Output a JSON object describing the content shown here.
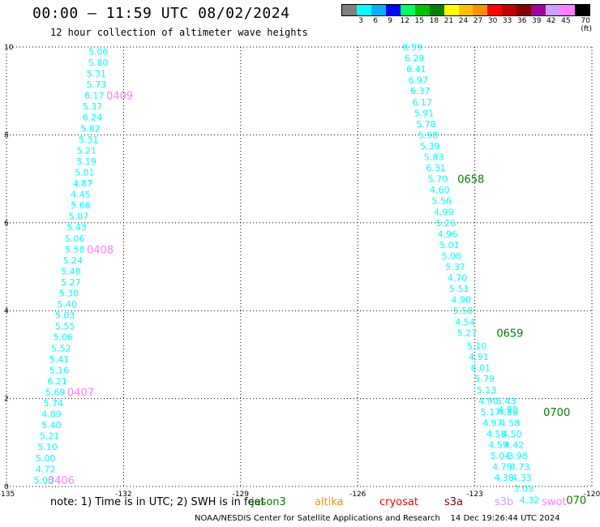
{
  "header": {
    "title": "00:00 – 11:59 UTC 08/02/2024",
    "subtitle": "12 hour collection of altimeter wave heights"
  },
  "colorbar": {
    "colors": [
      "#7f7f7f",
      "#00ffff",
      "#00b0ff",
      "#0000ff",
      "#00ff60",
      "#00c000",
      "#008000",
      "#ffff00",
      "#ffc000",
      "#ff9000",
      "#ff0000",
      "#c00000",
      "#800000",
      "#a000a0",
      "#d0a0ff",
      "#ff80ff",
      "#000000"
    ],
    "labels": [
      "3",
      "6",
      "9",
      "12",
      "15",
      "18",
      "21",
      "24",
      "27",
      "30",
      "33",
      "36",
      "39",
      "42",
      "45",
      "70 (ft)"
    ]
  },
  "chart_data": {
    "type": "scatter",
    "xlim": [
      -135,
      -120
    ],
    "ylim": [
      0,
      10
    ],
    "x_ticks": [
      "-135",
      "-132",
      "-129",
      "-126",
      "-123",
      "-120"
    ],
    "y_ticks": [
      "0",
      "2",
      "4",
      "6",
      "8",
      "10"
    ],
    "grid": true,
    "series": [
      {
        "color": "#00ffff",
        "points": [
          {
            "x": -132.65,
            "y": 9.9,
            "v": "5.06"
          },
          {
            "x": -132.65,
            "y": 9.65,
            "v": "5.80"
          },
          {
            "x": -132.7,
            "y": 9.4,
            "v": "5.31"
          },
          {
            "x": -132.7,
            "y": 9.15,
            "v": "5.73"
          },
          {
            "x": -132.75,
            "y": 8.9,
            "v": "6.17"
          },
          {
            "x": -132.8,
            "y": 8.65,
            "v": "5.37"
          },
          {
            "x": -132.8,
            "y": 8.4,
            "v": "6.24"
          },
          {
            "x": -132.85,
            "y": 8.15,
            "v": "5.82"
          },
          {
            "x": -132.9,
            "y": 7.9,
            "v": "5.31"
          },
          {
            "x": -132.95,
            "y": 7.65,
            "v": "5.21"
          },
          {
            "x": -132.95,
            "y": 7.4,
            "v": "5.19"
          },
          {
            "x": -133.0,
            "y": 7.15,
            "v": "5.01"
          },
          {
            "x": -133.05,
            "y": 6.9,
            "v": "4.87"
          },
          {
            "x": -133.1,
            "y": 6.65,
            "v": "4.45"
          },
          {
            "x": -133.1,
            "y": 6.4,
            "v": "5.66"
          },
          {
            "x": -133.15,
            "y": 6.15,
            "v": "5.07"
          },
          {
            "x": -133.2,
            "y": 5.9,
            "v": "5.43"
          },
          {
            "x": -133.25,
            "y": 5.65,
            "v": "5.06"
          },
          {
            "x": -133.25,
            "y": 5.4,
            "v": "5.58"
          },
          {
            "x": -133.3,
            "y": 5.15,
            "v": "5.24"
          },
          {
            "x": -133.35,
            "y": 4.9,
            "v": "5.48"
          },
          {
            "x": -133.35,
            "y": 4.65,
            "v": "5.27"
          },
          {
            "x": -133.4,
            "y": 4.4,
            "v": "5.30"
          },
          {
            "x": -133.45,
            "y": 4.15,
            "v": "5.40"
          },
          {
            "x": -133.5,
            "y": 3.9,
            "v": "5.03"
          },
          {
            "x": -133.5,
            "y": 3.65,
            "v": "5.55"
          },
          {
            "x": -133.55,
            "y": 3.4,
            "v": "5.06"
          },
          {
            "x": -133.6,
            "y": 3.15,
            "v": "5.52"
          },
          {
            "x": -133.65,
            "y": 2.9,
            "v": "5.41"
          },
          {
            "x": -133.65,
            "y": 2.65,
            "v": "5.16"
          },
          {
            "x": -133.7,
            "y": 2.4,
            "v": "6.21"
          },
          {
            "x": -133.75,
            "y": 2.15,
            "v": "5.69"
          },
          {
            "x": -133.8,
            "y": 1.9,
            "v": "5.74"
          },
          {
            "x": -133.85,
            "y": 1.65,
            "v": "4.89"
          },
          {
            "x": -133.85,
            "y": 1.4,
            "v": "5.40"
          },
          {
            "x": -133.9,
            "y": 1.15,
            "v": "5.21"
          },
          {
            "x": -133.95,
            "y": 0.9,
            "v": "5.10"
          },
          {
            "x": -134.0,
            "y": 0.65,
            "v": "5.00"
          },
          {
            "x": -134.0,
            "y": 0.4,
            "v": "4.72"
          },
          {
            "x": -134.05,
            "y": 0.15,
            "v": "5.03"
          }
        ]
      },
      {
        "color": "#00ffff",
        "points": [
          {
            "x": -124.6,
            "y": 10.0,
            "v": "6.99"
          },
          {
            "x": -124.55,
            "y": 9.75,
            "v": "6.29"
          },
          {
            "x": -124.5,
            "y": 9.5,
            "v": "6.41"
          },
          {
            "x": -124.45,
            "y": 9.25,
            "v": "6.97"
          },
          {
            "x": -124.4,
            "y": 9.0,
            "v": "6.37"
          },
          {
            "x": -124.35,
            "y": 8.75,
            "v": "6.17"
          },
          {
            "x": -124.3,
            "y": 8.5,
            "v": "5.91"
          },
          {
            "x": -124.25,
            "y": 8.25,
            "v": "5.78"
          },
          {
            "x": -124.2,
            "y": 8.0,
            "v": "5.98"
          },
          {
            "x": -124.15,
            "y": 7.75,
            "v": "5.39"
          },
          {
            "x": -124.05,
            "y": 7.5,
            "v": "5.83"
          },
          {
            "x": -124.0,
            "y": 7.25,
            "v": "6.31"
          },
          {
            "x": -123.95,
            "y": 7.0,
            "v": "5.70"
          },
          {
            "x": -123.9,
            "y": 6.75,
            "v": "4.60"
          },
          {
            "x": -123.85,
            "y": 6.5,
            "v": "5.56"
          },
          {
            "x": -123.8,
            "y": 6.25,
            "v": "4.99"
          },
          {
            "x": -123.75,
            "y": 6.0,
            "v": "5.26"
          },
          {
            "x": -123.7,
            "y": 5.75,
            "v": "4.96"
          },
          {
            "x": -123.65,
            "y": 5.5,
            "v": "5.01"
          },
          {
            "x": -123.6,
            "y": 5.25,
            "v": "5.08"
          },
          {
            "x": -123.5,
            "y": 5.0,
            "v": "5.37"
          },
          {
            "x": -123.45,
            "y": 4.75,
            "v": "4.70"
          },
          {
            "x": -123.4,
            "y": 4.5,
            "v": "5.51"
          },
          {
            "x": -123.35,
            "y": 4.25,
            "v": "4.90"
          },
          {
            "x": -123.3,
            "y": 4.0,
            "v": "5.58"
          },
          {
            "x": -123.25,
            "y": 3.75,
            "v": "4.54"
          },
          {
            "x": -123.2,
            "y": 3.5,
            "v": "5.27"
          },
          {
            "x": -122.95,
            "y": 3.2,
            "v": "5.10"
          },
          {
            "x": -122.9,
            "y": 2.95,
            "v": "4.91"
          },
          {
            "x": -122.85,
            "y": 2.7,
            "v": "6.01"
          },
          {
            "x": -122.75,
            "y": 2.45,
            "v": "5.79"
          },
          {
            "x": -122.7,
            "y": 2.2,
            "v": "5.13"
          },
          {
            "x": -122.65,
            "y": 1.95,
            "v": "4.90"
          },
          {
            "x": -122.6,
            "y": 1.7,
            "v": "5.17"
          },
          {
            "x": -122.55,
            "y": 1.45,
            "v": "4.97"
          },
          {
            "x": -122.45,
            "y": 1.2,
            "v": "4.58"
          },
          {
            "x": -122.4,
            "y": 0.95,
            "v": "4.59"
          },
          {
            "x": -122.35,
            "y": 0.7,
            "v": "5.04"
          },
          {
            "x": -122.3,
            "y": 0.45,
            "v": "4.79"
          },
          {
            "x": -122.25,
            "y": 0.2,
            "v": "4.38"
          }
        ]
      },
      {
        "color": "#00ffff",
        "points": [
          {
            "x": -122.2,
            "y": 1.95,
            "v": "5.43"
          },
          {
            "x": -122.15,
            "y": 1.75,
            "v": "4.98"
          },
          {
            "x": -122.15,
            "y": 1.7,
            "v": "4.86"
          },
          {
            "x": -122.1,
            "y": 1.45,
            "v": "4.58"
          },
          {
            "x": -122.05,
            "y": 1.2,
            "v": "4.50"
          },
          {
            "x": -122.0,
            "y": 0.95,
            "v": "4.42"
          },
          {
            "x": -121.9,
            "y": 0.7,
            "v": "3.98"
          },
          {
            "x": -121.85,
            "y": 0.45,
            "v": "3.73"
          },
          {
            "x": -121.8,
            "y": 0.2,
            "v": "4.33"
          },
          {
            "x": -121.75,
            "y": -0.05,
            "v": "3.03"
          },
          {
            "x": -121.6,
            "y": -0.3,
            "v": "4.32"
          }
        ]
      }
    ],
    "time_labels": [
      {
        "x": -132.1,
        "y": 8.9,
        "text": "0409",
        "color": "#ff80ff"
      },
      {
        "x": -132.6,
        "y": 5.4,
        "text": "0408",
        "color": "#ff80ff"
      },
      {
        "x": -133.1,
        "y": 2.15,
        "text": "0407",
        "color": "#ff80ff"
      },
      {
        "x": -133.6,
        "y": 0.15,
        "text": "0406",
        "color": "#ff80ff"
      },
      {
        "x": -123.1,
        "y": 7.0,
        "text": "0658",
        "color": "#008000"
      },
      {
        "x": -122.1,
        "y": 3.5,
        "text": "0659",
        "color": "#008000"
      },
      {
        "x": -120.9,
        "y": 1.7,
        "text": "0700",
        "color": "#008000"
      },
      {
        "x": -120.4,
        "y": -0.3,
        "text": "070",
        "color": "#008000"
      }
    ]
  },
  "note": "note:  1) Time is in UTC; 2) SWH is in feet",
  "legend": [
    {
      "label": "jason3",
      "color": "#008000"
    },
    {
      "label": "altika",
      "color": "#ff9000"
    },
    {
      "label": "cryosat",
      "color": "#ff0000"
    },
    {
      "label": "s3a",
      "color": "#800000"
    },
    {
      "label": "s3b",
      "color": "#d0a0ff"
    },
    {
      "label": "swot",
      "color": "#ff80ff"
    }
  ],
  "credit": "NOAA/NESDIS Center for Satellite Applications and Research    14 Dec 19:26:44 UTC 2024"
}
